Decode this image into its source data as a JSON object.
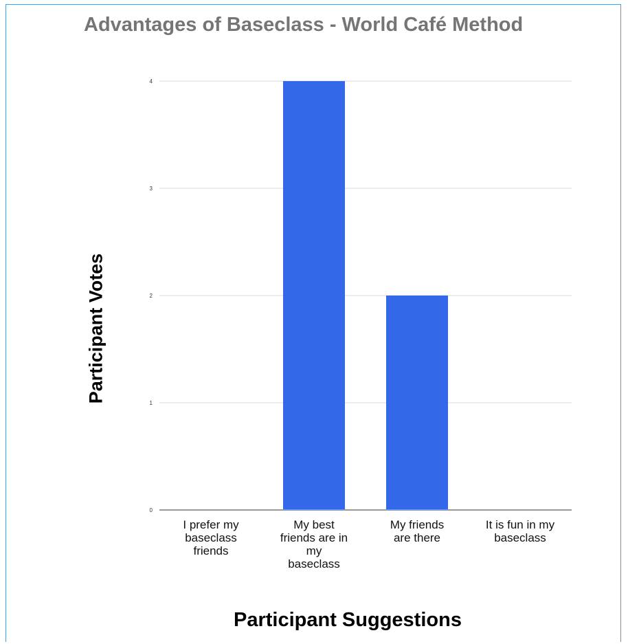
{
  "chart_data": {
    "type": "bar",
    "title": "Advantages of Baseclass - World Café Method",
    "xlabel": "Participant Suggestions",
    "ylabel": "Participant Votes",
    "categories": [
      "I prefer my baseclass friends",
      "My best friends are in my baseclass",
      "My friends are there",
      "It is fun in my baseclass"
    ],
    "category_lines": [
      [
        "I prefer my",
        "baseclass",
        "friends"
      ],
      [
        "My best",
        "friends are in",
        "my",
        "baseclass"
      ],
      [
        "My friends",
        "are there"
      ],
      [
        "It is fun in my",
        "baseclass"
      ]
    ],
    "values": [
      0,
      4,
      2,
      0
    ],
    "ylim": [
      0,
      4
    ],
    "yticks": [
      0,
      1,
      2,
      3,
      4
    ],
    "grid": true,
    "legend": "none",
    "bar_color": "#3369e8",
    "grid_color": "#e6e6e6",
    "baseline_color": "#999999"
  }
}
